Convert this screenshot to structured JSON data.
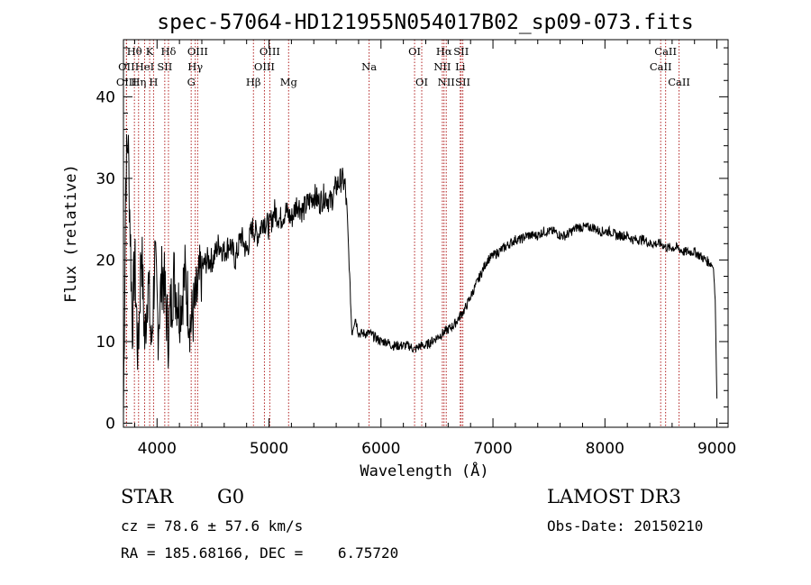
{
  "chart_data": {
    "type": "line",
    "title": "spec-57064-HD121955N054017B02_sp09-073.fits",
    "xlabel": "Wavelength (Å)",
    "ylabel": "Flux (relative)",
    "xlim": [
      3700,
      9100
    ],
    "ylim": [
      -0.5,
      47
    ],
    "xticks": [
      4000,
      5000,
      6000,
      7000,
      8000,
      9000
    ],
    "yticks": [
      0,
      10,
      20,
      30,
      40
    ],
    "grid": false,
    "series": [
      {
        "name": "spectrum",
        "x": [
          3700,
          3720,
          3740,
          3760,
          3780,
          3800,
          3830,
          3860,
          3890,
          3920,
          3950,
          3980,
          4010,
          4050,
          4100,
          4150,
          4200,
          4250,
          4300,
          4350,
          4400,
          4450,
          4500,
          4550,
          4600,
          4650,
          4700,
          4750,
          4800,
          4850,
          4900,
          4950,
          5000,
          5050,
          5100,
          5150,
          5200,
          5250,
          5300,
          5350,
          5400,
          5450,
          5500,
          5550,
          5600,
          5650,
          5680,
          5700,
          5720,
          5740,
          5770,
          5800,
          5850,
          5900,
          5950,
          6000,
          6050,
          6100,
          6150,
          6200,
          6250,
          6300,
          6350,
          6400,
          6450,
          6500,
          6550,
          6600,
          6650,
          6700,
          6750,
          6800,
          6850,
          6900,
          6950,
          7000,
          7050,
          7100,
          7150,
          7200,
          7250,
          7300,
          7350,
          7400,
          7450,
          7500,
          7550,
          7600,
          7650,
          7700,
          7750,
          7800,
          7850,
          7900,
          7950,
          8000,
          8050,
          8100,
          8150,
          8200,
          8250,
          8300,
          8350,
          8400,
          8450,
          8500,
          8550,
          8600,
          8650,
          8700,
          8750,
          8800,
          8850,
          8900,
          8950,
          8970,
          8985,
          9000
        ],
        "values": [
          1,
          30,
          35,
          24,
          12,
          20,
          8,
          22,
          10,
          18,
          9,
          20,
          12,
          19,
          11,
          18,
          14,
          18,
          12,
          15,
          19,
          20,
          20,
          22,
          21,
          22,
          20,
          23,
          21,
          24,
          23,
          25,
          24,
          26,
          25,
          26,
          25,
          27,
          26,
          27,
          28,
          27,
          28,
          27,
          29,
          30,
          29,
          25,
          18,
          11,
          13,
          11,
          11,
          11,
          10.5,
          10,
          10,
          9.5,
          9.5,
          9.5,
          9.5,
          9,
          9.5,
          9.5,
          10,
          10.5,
          11,
          11.5,
          12,
          13,
          14,
          15.5,
          17,
          18.5,
          20,
          20.5,
          21,
          21.5,
          22,
          22.5,
          22.5,
          23,
          23,
          23,
          23.5,
          23.5,
          23.5,
          23,
          23,
          23.5,
          24,
          24,
          24,
          24,
          23.5,
          23.5,
          23.5,
          23,
          23,
          23,
          22.5,
          22.5,
          22.5,
          22,
          22,
          22,
          21.5,
          21.5,
          21.5,
          21,
          21,
          21,
          20.5,
          20,
          19.5,
          19,
          15,
          3
        ]
      }
    ],
    "spectral_lines": [
      {
        "name": "Hθ",
        "wl": 3798,
        "row": 1
      },
      {
        "name": "OII",
        "wl": 3727,
        "row": 2
      },
      {
        "name": "OIII",
        "wl": 3727,
        "row": 3
      },
      {
        "name": "HeI",
        "wl": 3889,
        "row": 2
      },
      {
        "name": "Hη",
        "wl": 3835,
        "row": 3
      },
      {
        "name": "K",
        "wl": 3934,
        "row": 1
      },
      {
        "name": "SII",
        "wl": 4069,
        "row": 2
      },
      {
        "name": "H",
        "wl": 3969,
        "row": 3
      },
      {
        "name": "Hδ",
        "wl": 4102,
        "row": 1
      },
      {
        "name": "OIII",
        "wl": 4363,
        "row": 1
      },
      {
        "name": "Hγ",
        "wl": 4341,
        "row": 2
      },
      {
        "name": "G",
        "wl": 4305,
        "row": 3
      },
      {
        "name": "Hβ",
        "wl": 4861,
        "row": 3
      },
      {
        "name": "OIII",
        "wl": 5007,
        "row": 1
      },
      {
        "name": "OIII",
        "wl": 4959,
        "row": 2
      },
      {
        "name": "Mg",
        "wl": 5175,
        "row": 3
      },
      {
        "name": "Na",
        "wl": 5894,
        "row": 2
      },
      {
        "name": "OI",
        "wl": 6300,
        "row": 1
      },
      {
        "name": "OI",
        "wl": 6364,
        "row": 3
      },
      {
        "name": "Hα",
        "wl": 6563,
        "row": 1
      },
      {
        "name": "SII",
        "wl": 6716,
        "row": 1
      },
      {
        "name": "NII",
        "wl": 6548,
        "row": 2
      },
      {
        "name": "Li",
        "wl": 6708,
        "row": 2
      },
      {
        "name": "NII",
        "wl": 6583,
        "row": 3
      },
      {
        "name": "SII",
        "wl": 6731,
        "row": 3
      },
      {
        "name": "CaII",
        "wl": 8542,
        "row": 1
      },
      {
        "name": "CaII",
        "wl": 8498,
        "row": 2
      },
      {
        "name": "CaII",
        "wl": 8662,
        "row": 3
      }
    ]
  },
  "info": {
    "object_class": "STAR",
    "subclass": "G0",
    "survey": "LAMOST DR3",
    "cz": "cz = 78.6 ± 57.6 km/s",
    "obs_date": "Obs-Date: 20150210",
    "radec": "RA = 185.68166, DEC =    6.75720"
  },
  "colors": {
    "line_marker": "#b22222",
    "spectrum": "#000000",
    "axes": "#000000"
  }
}
